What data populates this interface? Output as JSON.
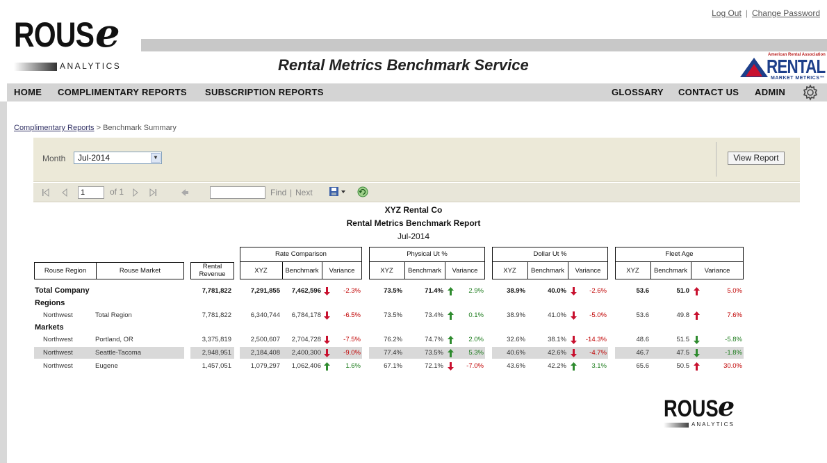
{
  "brand": {
    "logo_word": "ROUS",
    "logo_e": "e",
    "logo_sub": "ANALYTICS"
  },
  "top_links": {
    "logout": "Log Out",
    "change_password": "Change Password",
    "separator": "|"
  },
  "app_title": "Rental Metrics Benchmark Service",
  "partner_logo": {
    "small": "American Rental Association",
    "main": "RENTAL",
    "sub": "MARKET METRICS™"
  },
  "nav": {
    "home": "HOME",
    "complimentary": "COMPLIMENTARY REPORTS",
    "subscription": "SUBSCRIPTION REPORTS",
    "glossary": "GLOSSARY",
    "contact": "CONTACT US",
    "admin": "ADMIN"
  },
  "breadcrumb": {
    "link": "Complimentary Reports",
    "sep": " > ",
    "current": "Benchmark Summary"
  },
  "params": {
    "month_label": "Month",
    "month_value": "Jul-2014",
    "view_report": "View Report"
  },
  "toolbar": {
    "page": "1",
    "of": "of 1",
    "find": "Find",
    "sep": "|",
    "next": "Next"
  },
  "report": {
    "company": "XYZ Rental Co",
    "title": "Rental Metrics Benchmark Report",
    "period": "Jul-2014"
  },
  "headers": {
    "region": "Rouse Region",
    "market": "Rouse Market",
    "revenue": "Rental Revenue",
    "rate": "Rate Comparison",
    "physical": "Physical Ut %",
    "dollar": "Dollar Ut %",
    "fleet": "Fleet Age",
    "xyz": "XYZ",
    "benchmark": "Benchmark",
    "variance": "Variance"
  },
  "sections": {
    "regions": "Regions",
    "markets": "Markets"
  },
  "colors": {
    "negative": "#c00000",
    "positive": "#1a7a1a",
    "highlight_row": "#d9d9d9"
  },
  "rows": [
    {
      "region": "Total Company",
      "market": "",
      "revenue": "7,781,822",
      "rate": [
        "7,291,855",
        "7,462,596",
        "-2.3%"
      ],
      "rate_dir": "down",
      "phys": [
        "73.5%",
        "71.4%",
        "2.9%"
      ],
      "phys_dir": "up",
      "dollar": [
        "38.9%",
        "40.0%",
        "-2.6%"
      ],
      "dollar_dir": "down",
      "fleet": [
        "53.6",
        "51.0",
        "5.0%"
      ],
      "fleet_dir": "up-red"
    },
    {
      "region": "Northwest",
      "market": "Total Region",
      "revenue": "7,781,822",
      "rate": [
        "6,340,744",
        "6,784,178",
        "-6.5%"
      ],
      "rate_dir": "down",
      "phys": [
        "73.5%",
        "73.4%",
        "0.1%"
      ],
      "phys_dir": "up",
      "dollar": [
        "38.9%",
        "41.0%",
        "-5.0%"
      ],
      "dollar_dir": "down",
      "fleet": [
        "53.6",
        "49.8",
        "7.6%"
      ],
      "fleet_dir": "up-red"
    },
    {
      "region": "Northwest",
      "market": "Portland, OR",
      "revenue": "3,375,819",
      "rate": [
        "2,500,607",
        "2,704,728",
        "-7.5%"
      ],
      "rate_dir": "down",
      "phys": [
        "76.2%",
        "74.7%",
        "2.0%"
      ],
      "phys_dir": "up",
      "dollar": [
        "32.6%",
        "38.1%",
        "-14.3%"
      ],
      "dollar_dir": "down",
      "fleet": [
        "48.6",
        "51.5",
        "-5.8%"
      ],
      "fleet_dir": "down-green"
    },
    {
      "region": "Northwest",
      "market": "Seattle-Tacoma",
      "revenue": "2,948,951",
      "rate": [
        "2,184,408",
        "2,400,300",
        "-9.0%"
      ],
      "rate_dir": "down",
      "phys": [
        "77.4%",
        "73.5%",
        "5.3%"
      ],
      "phys_dir": "up",
      "dollar": [
        "40.6%",
        "42.6%",
        "-4.7%"
      ],
      "dollar_dir": "down",
      "fleet": [
        "46.7",
        "47.5",
        "-1.8%"
      ],
      "fleet_dir": "down-green"
    },
    {
      "region": "Northwest",
      "market": "Eugene",
      "revenue": "1,457,051",
      "rate": [
        "1,079,297",
        "1,062,406",
        "1.6%"
      ],
      "rate_dir": "up",
      "phys": [
        "67.1%",
        "72.1%",
        "-7.0%"
      ],
      "phys_dir": "down",
      "dollar": [
        "43.6%",
        "42.2%",
        "3.1%"
      ],
      "dollar_dir": "up",
      "fleet": [
        "65.6",
        "50.5",
        "30.0%"
      ],
      "fleet_dir": "up-red"
    }
  ],
  "footer_logo": {
    "word": "ROUS",
    "e": "e",
    "sub": "ANALYTICS"
  }
}
